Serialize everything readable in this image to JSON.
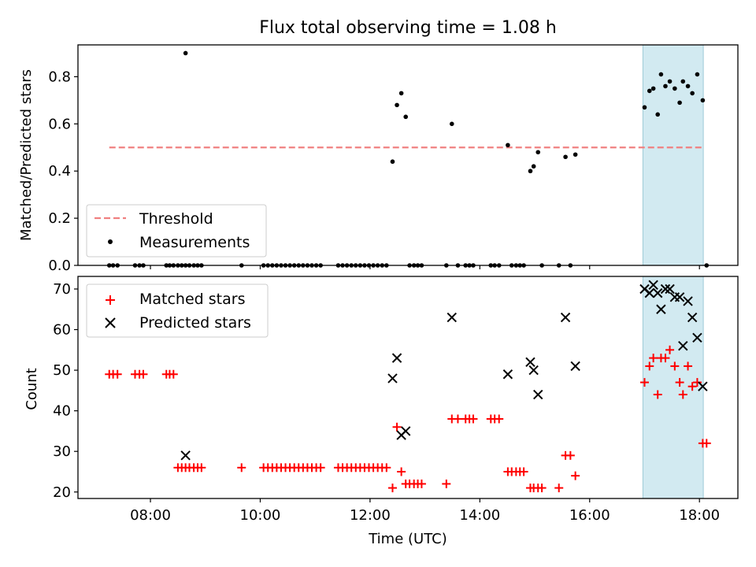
{
  "figure": {
    "title": "Flux total observing time = 1.08 h",
    "xlabel": "Time (UTC)"
  },
  "colors": {
    "threshold": "#f08080",
    "measurement": "#000000",
    "matched": "#ff0000",
    "predicted": "#000000",
    "highlight_fill": "#add8e6",
    "highlight_edge": "#9cc9d6"
  },
  "chart_data": [
    {
      "type": "scatter",
      "ylabel": "Matched/Predicted stars",
      "xlim": [
        6.68,
        18.7
      ],
      "ylim": [
        0,
        0.935
      ],
      "yticks": [
        0.0,
        0.2,
        0.4,
        0.6,
        0.8
      ],
      "ytick_labels": [
        "0.0",
        "0.2",
        "0.4",
        "0.6",
        "0.8"
      ],
      "grid": false,
      "legend": {
        "placement": "lower-left",
        "entries": [
          "Threshold",
          "Measurements"
        ]
      },
      "highlight_span": [
        16.97,
        18.07
      ],
      "threshold": {
        "name": "Threshold",
        "y": 0.5,
        "x": [
          7.25,
          18.07
        ],
        "style": "dashed"
      },
      "series": [
        {
          "name": "Measurements",
          "x": [
            7.25,
            7.32,
            7.4,
            7.72,
            7.8,
            7.87,
            8.29,
            8.35,
            8.42,
            8.5,
            8.57,
            8.64,
            8.71,
            8.79,
            8.86,
            8.93,
            8.64,
            9.66,
            10.06,
            10.14,
            10.22,
            10.3,
            10.38,
            10.46,
            10.54,
            10.62,
            10.7,
            10.78,
            10.86,
            10.94,
            11.02,
            11.1,
            11.42,
            11.5,
            11.58,
            11.66,
            11.74,
            11.82,
            11.9,
            11.98,
            12.06,
            12.14,
            12.22,
            12.3,
            12.41,
            12.49,
            12.57,
            12.65,
            12.72,
            12.8,
            12.87,
            12.94,
            13.39,
            13.49,
            13.6,
            13.74,
            13.81,
            13.88,
            14.2,
            14.27,
            14.35,
            14.51,
            14.58,
            14.66,
            14.73,
            14.8,
            14.92,
            14.98,
            15.06,
            15.13,
            15.44,
            15.56,
            15.65,
            15.74,
            17.0,
            17.09,
            17.16,
            17.24,
            17.3,
            17.38,
            17.46,
            17.55,
            17.64,
            17.7,
            17.79,
            17.87,
            17.96,
            18.06,
            18.13
          ],
          "y": [
            0,
            0,
            0,
            0,
            0,
            0,
            0,
            0,
            0,
            0,
            0,
            0,
            0,
            0,
            0,
            0,
            0.9,
            0,
            0,
            0,
            0,
            0,
            0,
            0,
            0,
            0,
            0,
            0,
            0,
            0,
            0,
            0,
            0,
            0,
            0,
            0,
            0,
            0,
            0,
            0,
            0,
            0,
            0,
            0,
            0.44,
            0.68,
            0.73,
            0.63,
            0,
            0,
            0,
            0,
            0,
            0.6,
            0,
            0,
            0,
            0,
            0,
            0,
            0,
            0.51,
            0,
            0,
            0,
            0,
            0.4,
            0.42,
            0.48,
            0,
            0,
            0.46,
            0,
            0.47,
            0.67,
            0.74,
            0.75,
            0.64,
            0.81,
            0.76,
            0.78,
            0.75,
            0.69,
            0.78,
            0.76,
            0.73,
            0.81,
            0.7,
            0
          ]
        }
      ]
    },
    {
      "type": "scatter",
      "ylabel": "Count",
      "xlim": [
        6.68,
        18.7
      ],
      "ylim": [
        18.4,
        73.1
      ],
      "yticks": [
        20,
        30,
        40,
        50,
        60,
        70
      ],
      "ytick_labels": [
        "20",
        "30",
        "40",
        "50",
        "60",
        "70"
      ],
      "xticks": [
        8,
        10,
        12,
        14,
        16,
        18
      ],
      "xtick_labels": [
        "08:00",
        "10:00",
        "12:00",
        "14:00",
        "16:00",
        "18:00"
      ],
      "grid": false,
      "legend": {
        "placement": "top-left",
        "entries": [
          "Matched stars",
          "Predicted stars"
        ]
      },
      "highlight_span": [
        16.97,
        18.07
      ],
      "series": [
        {
          "name": "Matched stars",
          "marker": "plus",
          "x": [
            7.25,
            7.32,
            7.4,
            7.72,
            7.8,
            7.87,
            8.29,
            8.35,
            8.42,
            8.5,
            8.57,
            8.64,
            8.71,
            8.79,
            8.86,
            8.93,
            9.66,
            10.06,
            10.14,
            10.22,
            10.3,
            10.38,
            10.46,
            10.54,
            10.62,
            10.7,
            10.78,
            10.86,
            10.94,
            11.02,
            11.1,
            11.42,
            11.5,
            11.58,
            11.66,
            11.74,
            11.82,
            11.9,
            11.98,
            12.06,
            12.14,
            12.22,
            12.3,
            12.41,
            12.49,
            12.57,
            12.65,
            12.72,
            12.8,
            12.87,
            12.94,
            13.39,
            13.49,
            13.6,
            13.74,
            13.81,
            13.88,
            14.2,
            14.27,
            14.35,
            14.51,
            14.58,
            14.66,
            14.73,
            14.8,
            14.92,
            14.98,
            15.06,
            15.13,
            15.44,
            15.56,
            15.65,
            15.74,
            17.0,
            17.09,
            17.16,
            17.24,
            17.3,
            17.38,
            17.46,
            17.55,
            17.64,
            17.7,
            17.79,
            17.87,
            17.96,
            18.06,
            18.13
          ],
          "y": [
            49,
            49,
            49,
            49,
            49,
            49,
            49,
            49,
            49,
            26,
            26,
            26,
            26,
            26,
            26,
            26,
            26,
            26,
            26,
            26,
            26,
            26,
            26,
            26,
            26,
            26,
            26,
            26,
            26,
            26,
            26,
            26,
            26,
            26,
            26,
            26,
            26,
            26,
            26,
            26,
            26,
            26,
            26,
            21,
            36,
            25,
            22,
            22,
            22,
            22,
            22,
            22,
            38,
            38,
            38,
            38,
            38,
            38,
            38,
            38,
            25,
            25,
            25,
            25,
            25,
            21,
            21,
            21,
            21,
            21,
            29,
            29,
            24,
            47,
            51,
            53,
            44,
            53,
            53,
            55,
            51,
            47,
            44,
            51,
            46,
            47,
            32,
            32
          ]
        },
        {
          "name": "Predicted stars",
          "marker": "x",
          "x": [
            8.64,
            12.41,
            12.49,
            12.57,
            12.65,
            13.49,
            14.51,
            14.92,
            14.98,
            15.06,
            15.56,
            15.74,
            17.0,
            17.09,
            17.16,
            17.24,
            17.3,
            17.38,
            17.46,
            17.55,
            17.64,
            17.7,
            17.79,
            17.87,
            17.96,
            18.06
          ],
          "y": [
            29,
            48,
            53,
            34,
            35,
            63,
            49,
            52,
            50,
            44,
            63,
            51,
            70,
            69,
            71,
            69,
            65,
            70,
            70,
            68,
            68,
            56,
            67,
            63,
            58,
            46
          ]
        }
      ]
    }
  ]
}
